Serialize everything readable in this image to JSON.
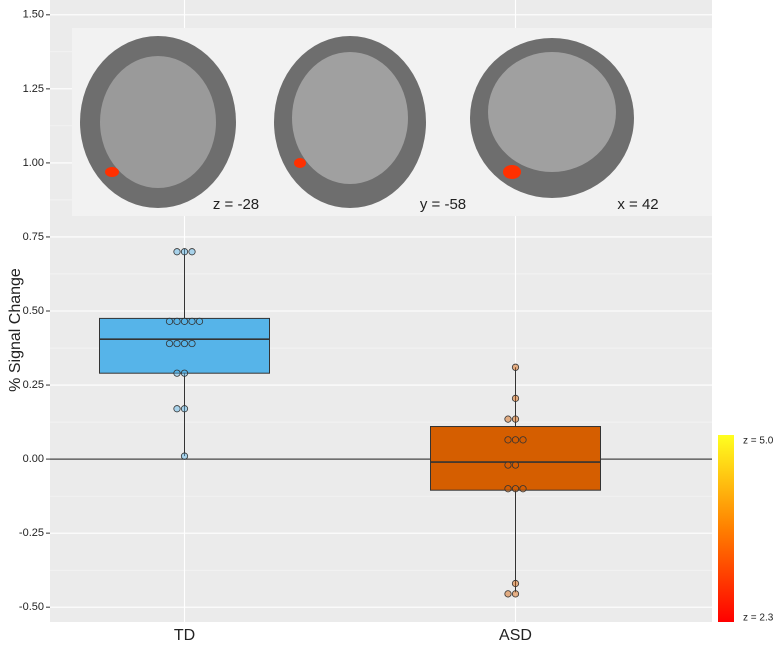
{
  "chart_data": {
    "type": "box",
    "ylabel": "% Signal Change",
    "categories": [
      "TD",
      "ASD"
    ],
    "colors": [
      "#56b4e9",
      "#d55e00"
    ],
    "low": [
      0.01,
      -0.45
    ],
    "q1": [
      0.29,
      -0.105
    ],
    "median": [
      0.405,
      -0.01
    ],
    "q3": [
      0.475,
      0.11
    ],
    "high": [
      0.71,
      0.31
    ],
    "points": [
      [
        0.7,
        0.7,
        0.7,
        0.465,
        0.465,
        0.465,
        0.465,
        0.465,
        0.39,
        0.39,
        0.39,
        0.39,
        0.29,
        0.29,
        0.17,
        0.17,
        0.01
      ],
      [
        0.31,
        0.205,
        0.135,
        0.135,
        0.065,
        0.065,
        0.065,
        -0.02,
        -0.02,
        -0.1,
        -0.1,
        -0.1,
        -0.42,
        -0.455,
        -0.455
      ]
    ],
    "reference_line": 0,
    "ylim": [
      -0.55,
      1.55
    ],
    "yticks": [
      {
        "value": -0.5,
        "label": "-0.50"
      },
      {
        "value": -0.25,
        "label": "-0.25"
      },
      {
        "value": 0,
        "label": "0.00"
      },
      {
        "value": 0.25,
        "label": "0.25"
      },
      {
        "value": 0.5,
        "label": "0.50"
      },
      {
        "value": 0.75,
        "label": "0.75"
      },
      {
        "value": 1,
        "label": "1.00"
      },
      {
        "value": 1.25,
        "label": "1.25"
      },
      {
        "value": 1.5,
        "label": "1.50"
      }
    ],
    "grid": true,
    "inset_labels": [
      "z = -28",
      "y = -58",
      "x = 42"
    ],
    "colorbar": {
      "max_label": "z = 5.0",
      "min_label": "z = 2.3"
    }
  }
}
